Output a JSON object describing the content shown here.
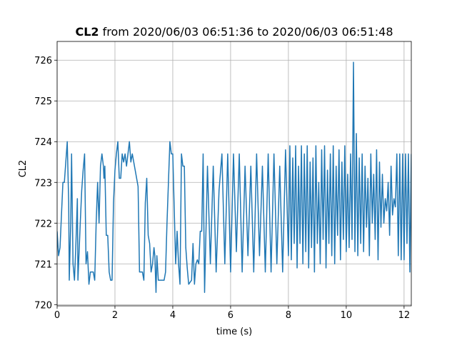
{
  "chart_data": {
    "type": "line",
    "title_bold": "CL2",
    "title": "from 2020/06/03 06:51:36 to 2020/06/03 06:51:48",
    "xlabel": "time (s)",
    "ylabel": "CL2",
    "xlim": [
      0,
      12.25
    ],
    "ylim": [
      719.97,
      726.46
    ],
    "xticks": [
      0,
      2,
      4,
      6,
      8,
      10,
      12
    ],
    "yticks": [
      720,
      721,
      722,
      723,
      724,
      725,
      726
    ],
    "grid": true,
    "series": [
      {
        "name": "CL2",
        "color": "#1f77b4",
        "x": [
          0,
          0.05,
          0.1,
          0.2,
          0.25,
          0.35,
          0.4,
          0.42,
          0.47,
          0.5,
          0.55,
          0.6,
          0.65,
          0.7,
          0.72,
          0.8,
          0.85,
          0.9,
          0.95,
          1.0,
          1.05,
          1.1,
          1.15,
          1.25,
          1.3,
          1.35,
          1.4,
          1.45,
          1.5,
          1.55,
          1.6,
          1.62,
          1.65,
          1.7,
          1.75,
          1.8,
          1.85,
          1.9,
          1.95,
          2.0,
          2.05,
          2.1,
          2.15,
          2.2,
          2.25,
          2.3,
          2.35,
          2.4,
          2.45,
          2.5,
          2.55,
          2.6,
          2.7,
          2.8,
          2.85,
          2.95,
          3.0,
          3.05,
          3.1,
          3.15,
          3.2,
          3.25,
          3.3,
          3.35,
          3.38,
          3.42,
          3.45,
          3.5,
          3.6,
          3.7,
          3.75,
          3.8,
          3.85,
          3.9,
          3.95,
          4.0,
          4.1,
          4.15,
          4.2,
          4.25,
          4.3,
          4.35,
          4.4,
          4.45,
          4.5,
          4.55,
          4.65,
          4.7,
          4.75,
          4.8,
          4.85,
          4.9,
          4.95,
          5.0,
          5.05,
          5.1,
          5.2,
          5.3,
          5.4,
          5.5,
          5.6,
          5.7,
          5.8,
          5.9,
          6.0,
          6.1,
          6.2,
          6.3,
          6.4,
          6.5,
          6.6,
          6.7,
          6.8,
          6.9,
          7.0,
          7.1,
          7.2,
          7.3,
          7.4,
          7.5,
          7.6,
          7.7,
          7.8,
          7.9,
          8.0,
          8.05,
          8.1,
          8.15,
          8.2,
          8.25,
          8.3,
          8.35,
          8.4,
          8.45,
          8.5,
          8.55,
          8.6,
          8.65,
          8.7,
          8.75,
          8.8,
          8.85,
          8.9,
          8.95,
          9.0,
          9.05,
          9.1,
          9.15,
          9.2,
          9.25,
          9.3,
          9.35,
          9.4,
          9.45,
          9.5,
          9.55,
          9.6,
          9.65,
          9.7,
          9.75,
          9.8,
          9.85,
          9.9,
          9.95,
          10.0,
          10.05,
          10.1,
          10.15,
          10.2,
          10.25,
          10.3,
          10.35,
          10.4,
          10.45,
          10.5,
          10.55,
          10.6,
          10.65,
          10.7,
          10.75,
          10.8,
          10.85,
          10.9,
          10.95,
          11.0,
          11.05,
          11.1,
          11.15,
          11.2,
          11.25,
          11.3,
          11.35,
          11.4,
          11.45,
          11.5,
          11.55,
          11.6,
          11.65,
          11.7,
          11.75,
          11.8,
          11.85,
          11.9,
          11.95,
          12.0,
          12.05,
          12.1,
          12.15,
          12.2,
          12.25
        ],
        "values": [
          721.8,
          721.2,
          721.4,
          723.0,
          723.0,
          724.0,
          722.5,
          720.6,
          722.0,
          723.7,
          721.0,
          720.6,
          721.5,
          722.6,
          720.6,
          722.0,
          722.8,
          723.3,
          723.7,
          721.0,
          721.3,
          720.5,
          720.8,
          720.8,
          720.6,
          722.0,
          723.0,
          722.0,
          723.4,
          723.7,
          723.4,
          723.1,
          723.4,
          721.7,
          721.7,
          720.8,
          720.6,
          720.6,
          722.5,
          723.3,
          723.7,
          724.0,
          723.1,
          723.1,
          723.7,
          723.5,
          723.7,
          723.4,
          723.7,
          724.0,
          723.5,
          723.7,
          723.3,
          722.9,
          720.8,
          720.8,
          720.6,
          722.5,
          723.1,
          721.7,
          721.5,
          720.8,
          721.0,
          721.4,
          721.2,
          720.3,
          721.2,
          720.6,
          720.6,
          720.6,
          720.8,
          722.0,
          723.0,
          724.0,
          723.7,
          723.7,
          721.0,
          721.8,
          721.0,
          720.5,
          723.7,
          723.4,
          723.4,
          721.4,
          720.9,
          720.5,
          720.6,
          721.5,
          720.5,
          721.0,
          721.1,
          721.0,
          721.8,
          721.8,
          723.7,
          720.3,
          723.4,
          721.0,
          723.4,
          720.8,
          722.8,
          723.7,
          721.0,
          723.7,
          720.8,
          723.7,
          721.3,
          723.7,
          720.8,
          723.4,
          721.2,
          723.4,
          720.8,
          723.7,
          721.2,
          723.4,
          720.8,
          723.7,
          720.8,
          723.7,
          721.0,
          723.4,
          720.8,
          723.8,
          721.2,
          723.9,
          721.1,
          723.6,
          721.5,
          723.9,
          720.9,
          723.4,
          721.5,
          723.9,
          721.0,
          723.7,
          721.3,
          723.9,
          720.9,
          723.5,
          721.4,
          723.6,
          720.8,
          723.9,
          721.5,
          723.0,
          721.0,
          723.8,
          721.6,
          723.9,
          720.9,
          723.3,
          721.5,
          723.7,
          721.2,
          723.9,
          721.0,
          723.4,
          721.7,
          723.8,
          721.1,
          723.5,
          721.6,
          723.9,
          721.3,
          723.2,
          721.4,
          723.7,
          721.6,
          725.95,
          721.3,
          724.2,
          721.2,
          723.6,
          721.5,
          723.7,
          721.3,
          723.4,
          721.9,
          723.1,
          721.2,
          723.7,
          722.0,
          723.2,
          721.6,
          723.8,
          721.1,
          723.5,
          721.9,
          723.2,
          722.0,
          722.6,
          722.3,
          723.0,
          721.7,
          723.4,
          722.2,
          722.6,
          722.4,
          723.7,
          721.2,
          723.7,
          721.1,
          723.7,
          721.1,
          723.7,
          721.5,
          723.7,
          720.8,
          723.7
        ]
      }
    ]
  }
}
